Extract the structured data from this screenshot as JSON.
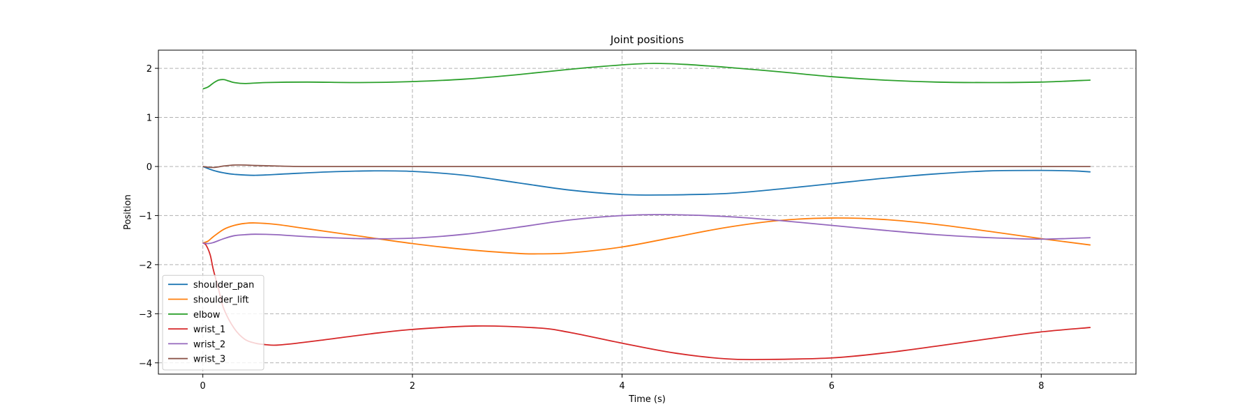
{
  "chart_data": {
    "type": "line",
    "title": "Joint positions",
    "xlabel": "Time (s)",
    "ylabel": "Position",
    "xlim": [
      -0.424,
      8.904
    ],
    "ylim": [
      -4.23,
      2.37
    ],
    "xticks": [
      0,
      2,
      4,
      6,
      8
    ],
    "xtick_labels": [
      "0",
      "2",
      "4",
      "6",
      "8"
    ],
    "yticks": [
      2,
      1,
      0,
      -1,
      -2,
      -3,
      -4
    ],
    "ytick_labels": [
      "2",
      "1",
      "0",
      "−1",
      "−2",
      "−3",
      "−4"
    ],
    "grid": true,
    "legend_position": "lower-left",
    "series": [
      {
        "name": "shoulder_pan",
        "color": "#1f77b4",
        "x": [
          0,
          0.1,
          0.2,
          0.3,
          0.5,
          0.8,
          1.2,
          1.6,
          2.0,
          2.5,
          3.0,
          3.5,
          4.0,
          4.4,
          5.0,
          5.5,
          6.0,
          6.5,
          7.0,
          7.5,
          8.0,
          8.3,
          8.47
        ],
        "y": [
          0,
          -0.08,
          -0.13,
          -0.16,
          -0.18,
          -0.15,
          -0.11,
          -0.09,
          -0.1,
          -0.18,
          -0.33,
          -0.48,
          -0.57,
          -0.58,
          -0.55,
          -0.46,
          -0.35,
          -0.24,
          -0.15,
          -0.09,
          -0.08,
          -0.09,
          -0.11
        ]
      },
      {
        "name": "shoulder_lift",
        "color": "#ff7f0e",
        "x": [
          0,
          0.05,
          0.1,
          0.2,
          0.3,
          0.4,
          0.5,
          0.7,
          1.0,
          1.5,
          2.0,
          2.5,
          3.0,
          3.2,
          3.5,
          4.0,
          4.5,
          5.0,
          5.5,
          6.0,
          6.5,
          7.0,
          7.5,
          8.0,
          8.47
        ],
        "y": [
          -1.56,
          -1.52,
          -1.43,
          -1.28,
          -1.2,
          -1.16,
          -1.15,
          -1.18,
          -1.27,
          -1.42,
          -1.57,
          -1.69,
          -1.77,
          -1.78,
          -1.76,
          -1.64,
          -1.44,
          -1.24,
          -1.1,
          -1.05,
          -1.08,
          -1.18,
          -1.32,
          -1.47,
          -1.6
        ]
      },
      {
        "name": "elbow",
        "color": "#2ca02c",
        "x": [
          0,
          0.05,
          0.1,
          0.15,
          0.2,
          0.25,
          0.3,
          0.4,
          0.6,
          1.0,
          1.5,
          2.0,
          2.5,
          3.0,
          3.5,
          4.0,
          4.3,
          4.6,
          5.0,
          5.5,
          6.0,
          6.5,
          7.0,
          7.5,
          8.0,
          8.47
        ],
        "y": [
          1.58,
          1.62,
          1.7,
          1.76,
          1.77,
          1.74,
          1.71,
          1.69,
          1.71,
          1.72,
          1.71,
          1.73,
          1.78,
          1.87,
          1.98,
          2.07,
          2.1,
          2.08,
          2.02,
          1.93,
          1.83,
          1.76,
          1.72,
          1.71,
          1.72,
          1.76
        ]
      },
      {
        "name": "wrist_1",
        "color": "#d62728",
        "x": [
          0,
          0.03,
          0.07,
          0.1,
          0.15,
          0.2,
          0.3,
          0.4,
          0.5,
          0.6,
          0.7,
          0.9,
          1.2,
          1.6,
          2.0,
          2.6,
          3.2,
          3.5,
          4.0,
          4.5,
          5.0,
          5.4,
          6.0,
          6.5,
          7.0,
          7.5,
          8.0,
          8.47
        ],
        "y": [
          -1.56,
          -1.6,
          -1.8,
          -2.1,
          -2.5,
          -2.9,
          -3.3,
          -3.52,
          -3.6,
          -3.63,
          -3.64,
          -3.6,
          -3.52,
          -3.41,
          -3.32,
          -3.25,
          -3.29,
          -3.38,
          -3.6,
          -3.8,
          -3.92,
          -3.93,
          -3.9,
          -3.8,
          -3.66,
          -3.51,
          -3.37,
          -3.28
        ]
      },
      {
        "name": "wrist_2",
        "color": "#9467bd",
        "x": [
          0,
          0.05,
          0.1,
          0.2,
          0.3,
          0.4,
          0.5,
          0.7,
          1.0,
          1.5,
          2.0,
          2.5,
          3.0,
          3.5,
          4.0,
          4.4,
          5.0,
          5.5,
          6.0,
          6.5,
          7.0,
          7.5,
          8.0,
          8.47
        ],
        "y": [
          -1.56,
          -1.57,
          -1.55,
          -1.47,
          -1.41,
          -1.39,
          -1.38,
          -1.39,
          -1.43,
          -1.47,
          -1.46,
          -1.38,
          -1.24,
          -1.09,
          -1.0,
          -0.98,
          -1.02,
          -1.1,
          -1.2,
          -1.3,
          -1.39,
          -1.45,
          -1.48,
          -1.45
        ]
      },
      {
        "name": "wrist_3",
        "color": "#8c564b",
        "x": [
          0,
          0.1,
          0.2,
          0.3,
          0.4,
          0.5,
          0.7,
          1.0,
          2.0,
          4.0,
          6.0,
          8.0,
          8.47
        ],
        "y": [
          0,
          -0.02,
          0.01,
          0.03,
          0.03,
          0.02,
          0.01,
          0.0,
          0.0,
          0.0,
          0.0,
          0.0,
          0.0
        ]
      }
    ]
  }
}
